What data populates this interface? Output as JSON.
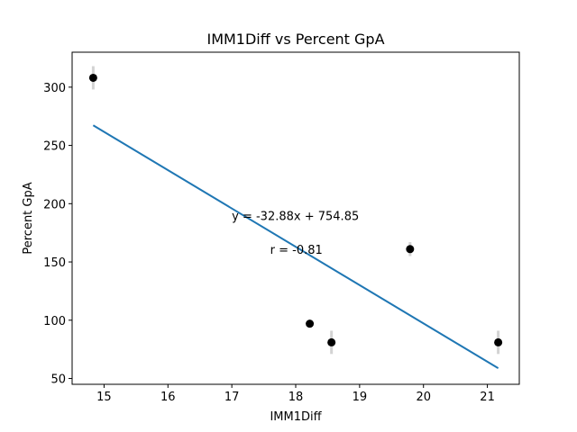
{
  "chart_data": {
    "type": "scatter",
    "title": "IMM1Diff vs Percent GpA",
    "xlabel": "IMM1Diff",
    "ylabel": "Percent GpA",
    "xlim": [
      14.5,
      21.5
    ],
    "ylim": [
      45,
      330
    ],
    "xticks": [
      15,
      16,
      17,
      18,
      19,
      20,
      21
    ],
    "yticks": [
      50,
      100,
      150,
      200,
      250,
      300
    ],
    "grid": false,
    "points": [
      {
        "x": 14.83,
        "y": 308,
        "err": 10
      },
      {
        "x": 18.22,
        "y": 97,
        "err": 3
      },
      {
        "x": 18.56,
        "y": 81,
        "err": 10
      },
      {
        "x": 19.79,
        "y": 161,
        "err": 6
      },
      {
        "x": 21.17,
        "y": 81,
        "err": 10
      }
    ],
    "fit": {
      "slope": -32.88,
      "intercept": 754.85,
      "x_range": [
        14.83,
        21.17
      ]
    },
    "annotations": [
      {
        "text": "y = -32.88x + 754.85",
        "x": 17.0,
        "y": 186
      },
      {
        "text": "r = -0.81",
        "x": 17.6,
        "y": 157
      }
    ],
    "colors": {
      "points": "#000000",
      "errorbars": "#d3d3d3",
      "fit": "#1f77b4"
    }
  }
}
